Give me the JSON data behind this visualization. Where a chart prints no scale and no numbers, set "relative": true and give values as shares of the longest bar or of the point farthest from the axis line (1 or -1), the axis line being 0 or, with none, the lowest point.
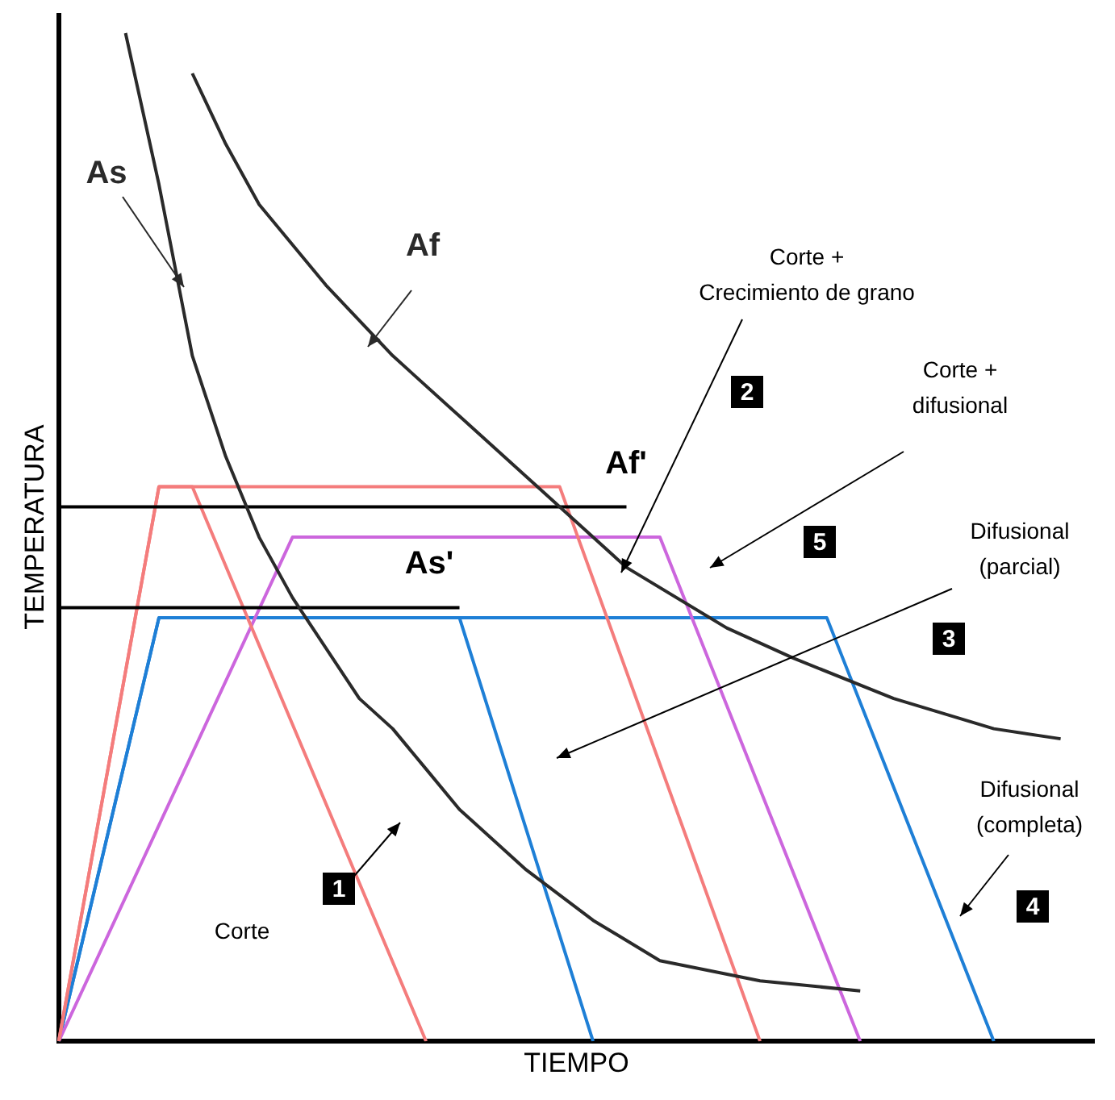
{
  "chart_data": {
    "type": "line",
    "relative": true,
    "xlabel": "TIEMPO",
    "ylabel": "TEMPERATURA",
    "grid": false,
    "legend": false,
    "marker": "none",
    "line_style": "solid",
    "categories": [
      null,
      null,
      null,
      null,
      null,
      null,
      null,
      null,
      null,
      null,
      null,
      null,
      null,
      null,
      null,
      null,
      null,
      null,
      null,
      null,
      null,
      null,
      null,
      null,
      null,
      null,
      null,
      null,
      null,
      null,
      null,
      null
    ],
    "series": [
      {
        "name": "As",
        "color": "#2a2a2a",
        "values": [
          null,
          null,
          1.0,
          0.85,
          0.68,
          0.58,
          0.5,
          0.44,
          0.39,
          0.34,
          0.31,
          0.27,
          0.23,
          null,
          0.17,
          null,
          0.12,
          null,
          0.08,
          null,
          null,
          0.06,
          null,
          null,
          0.05,
          null,
          null,
          null,
          null,
          null,
          null,
          null
        ]
      },
      {
        "name": "Af",
        "color": "#2a2a2a",
        "values": [
          null,
          null,
          null,
          null,
          0.96,
          0.89,
          0.83,
          null,
          0.75,
          null,
          0.68,
          null,
          0.62,
          null,
          null,
          0.53,
          null,
          0.47,
          null,
          null,
          0.41,
          null,
          0.38,
          null,
          null,
          0.34,
          null,
          null,
          0.31,
          null,
          0.3,
          null
        ]
      },
      {
        "name": "Af'",
        "color": "#000000",
        "values": [
          0.53,
          null,
          null,
          null,
          null,
          null,
          null,
          null,
          null,
          null,
          null,
          null,
          null,
          null,
          null,
          null,
          null,
          0.53,
          null,
          null,
          null,
          null,
          null,
          null,
          null,
          null,
          null,
          null,
          null,
          null,
          null,
          null
        ]
      },
      {
        "name": "As'",
        "color": "#000000",
        "values": [
          0.43,
          null,
          null,
          null,
          null,
          null,
          null,
          null,
          null,
          null,
          null,
          null,
          0.43,
          null,
          null,
          null,
          null,
          null,
          null,
          null,
          null,
          null,
          null,
          null,
          null,
          null,
          null,
          null,
          null,
          null,
          null,
          null
        ]
      },
      {
        "color": "#f47c7c",
        "values": [
          0,
          null,
          null,
          0.55,
          0.55,
          null,
          null,
          null,
          null,
          null,
          null,
          0,
          null,
          null,
          null,
          null,
          null,
          null,
          null,
          null,
          null,
          null,
          null,
          null,
          null,
          null,
          null,
          null,
          null,
          null,
          null,
          null
        ]
      },
      {
        "color": "#f47c7c",
        "values": [
          0,
          null,
          null,
          0.55,
          null,
          null,
          null,
          null,
          null,
          null,
          null,
          null,
          null,
          null,
          null,
          0.55,
          null,
          null,
          null,
          null,
          null,
          0,
          null,
          null,
          null,
          null,
          null,
          null,
          null,
          null,
          null,
          null
        ]
      },
      {
        "color": "#cc66dd",
        "values": [
          0,
          null,
          null,
          null,
          null,
          null,
          null,
          0.5,
          null,
          null,
          null,
          null,
          null,
          null,
          null,
          null,
          null,
          null,
          0.5,
          null,
          null,
          null,
          null,
          null,
          0,
          null,
          null,
          null,
          null,
          null,
          null,
          null
        ]
      },
      {
        "color": "#1e7fd6",
        "values": [
          0,
          null,
          null,
          0.42,
          null,
          null,
          null,
          null,
          null,
          null,
          null,
          null,
          0.42,
          null,
          null,
          null,
          0,
          null,
          null,
          null,
          null,
          null,
          null,
          null,
          null,
          null,
          null,
          null,
          null,
          null,
          null,
          null
        ]
      },
      {
        "color": "#1e7fd6",
        "values": [
          0,
          null,
          null,
          0.42,
          null,
          null,
          null,
          null,
          null,
          null,
          null,
          null,
          null,
          null,
          null,
          null,
          null,
          null,
          null,
          null,
          null,
          null,
          null,
          0.42,
          null,
          null,
          null,
          null,
          0,
          null,
          null,
          null
        ]
      }
    ],
    "annotations": [
      "Corte +\nCrecimiento de grano",
      "Corte +\ndifusional",
      "Difusional\n(parcial)",
      "Difusional\n(completa)",
      "Corte",
      "1",
      "2",
      "3",
      "4",
      "5"
    ]
  }
}
